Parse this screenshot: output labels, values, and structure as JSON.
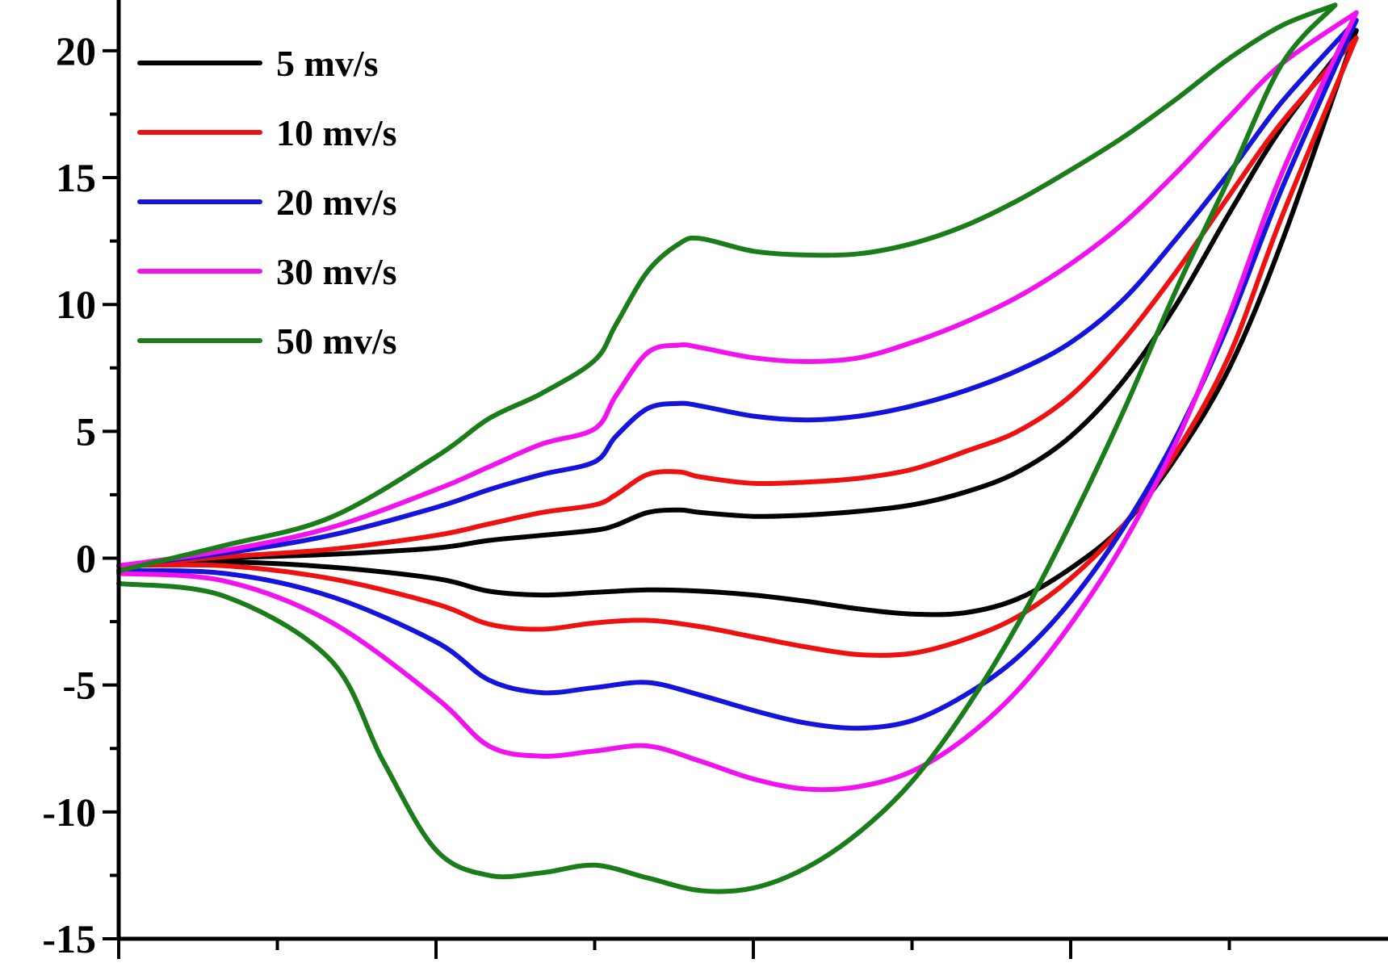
{
  "chart_data": {
    "type": "line",
    "title": "",
    "xlabel": "",
    "ylabel": "",
    "xlim": [
      -0.4,
      0.8
    ],
    "ylim": [
      -15,
      22
    ],
    "x_major_ticks": [
      -0.4,
      -0.1,
      0.2,
      0.5
    ],
    "x_minor_ticks": [
      -0.25,
      0.05,
      0.35,
      0.65
    ],
    "y_ticks": [
      {
        "value": -15,
        "label": "-15"
      },
      {
        "value": -10,
        "label": "-10"
      },
      {
        "value": -5,
        "label": "-5"
      },
      {
        "value": 0,
        "label": "0"
      },
      {
        "value": 5,
        "label": "5"
      },
      {
        "value": 10,
        "label": "10"
      },
      {
        "value": 15,
        "label": "15"
      },
      {
        "value": 20,
        "label": "20"
      }
    ],
    "y_minor_ticks": [
      -12.5,
      -7.5,
      -2.5,
      2.5,
      7.5,
      12.5,
      17.5
    ],
    "grid": false,
    "legend_position": "top-left",
    "series": [
      {
        "name": "5 mv/s",
        "color": "#000000",
        "anodic": {
          "x": [
            -0.4,
            -0.3,
            -0.2,
            -0.1,
            -0.05,
            0.0,
            0.05,
            0.07,
            0.1,
            0.13,
            0.15,
            0.2,
            0.25,
            0.3,
            0.35,
            0.4,
            0.45,
            0.5,
            0.55,
            0.6,
            0.65,
            0.7,
            0.77
          ],
          "y": [
            -0.3,
            0.0,
            0.15,
            0.4,
            0.7,
            0.9,
            1.1,
            1.3,
            1.8,
            1.9,
            1.8,
            1.65,
            1.7,
            1.85,
            2.1,
            2.6,
            3.4,
            4.8,
            7.0,
            10.0,
            13.6,
            17.0,
            20.8
          ]
        },
        "cathodic": {
          "x": [
            -0.4,
            -0.3,
            -0.2,
            -0.1,
            -0.05,
            0.0,
            0.05,
            0.1,
            0.15,
            0.2,
            0.25,
            0.3,
            0.35,
            0.4,
            0.45,
            0.5,
            0.55,
            0.6,
            0.65,
            0.7,
            0.77
          ],
          "y": [
            -0.3,
            -0.15,
            -0.35,
            -0.8,
            -1.3,
            -1.45,
            -1.35,
            -1.25,
            -1.3,
            -1.45,
            -1.7,
            -2.0,
            -2.2,
            -2.15,
            -1.6,
            -0.4,
            1.3,
            4.0,
            7.5,
            12.5,
            20.8
          ]
        }
      },
      {
        "name": "10 mv/s",
        "color": "#ee1111",
        "anodic": {
          "x": [
            -0.4,
            -0.3,
            -0.2,
            -0.1,
            -0.05,
            0.0,
            0.05,
            0.07,
            0.1,
            0.13,
            0.15,
            0.2,
            0.25,
            0.3,
            0.35,
            0.4,
            0.45,
            0.5,
            0.55,
            0.6,
            0.65,
            0.7,
            0.77
          ],
          "y": [
            -0.3,
            0.05,
            0.35,
            0.9,
            1.35,
            1.8,
            2.1,
            2.5,
            3.3,
            3.4,
            3.2,
            2.95,
            3.0,
            3.15,
            3.5,
            4.2,
            5.0,
            6.4,
            8.6,
            11.3,
            14.3,
            17.2,
            20.5
          ]
        },
        "cathodic": {
          "x": [
            -0.4,
            -0.3,
            -0.2,
            -0.1,
            -0.05,
            0.0,
            0.05,
            0.1,
            0.15,
            0.2,
            0.25,
            0.3,
            0.35,
            0.4,
            0.45,
            0.5,
            0.55,
            0.6,
            0.65,
            0.7,
            0.77
          ],
          "y": [
            -0.3,
            -0.3,
            -0.8,
            -1.8,
            -2.6,
            -2.8,
            -2.55,
            -2.45,
            -2.7,
            -3.1,
            -3.5,
            -3.8,
            -3.75,
            -3.2,
            -2.3,
            -0.8,
            1.3,
            4.2,
            8.0,
            13.5,
            20.5
          ]
        }
      },
      {
        "name": "20 mv/s",
        "color": "#1414dc",
        "anodic": {
          "x": [
            -0.4,
            -0.3,
            -0.2,
            -0.1,
            -0.05,
            0.0,
            0.05,
            0.07,
            0.1,
            0.13,
            0.15,
            0.2,
            0.25,
            0.3,
            0.35,
            0.4,
            0.45,
            0.5,
            0.55,
            0.6,
            0.65,
            0.7,
            0.77
          ],
          "y": [
            -0.3,
            0.2,
            0.9,
            2.0,
            2.7,
            3.3,
            3.8,
            4.8,
            5.9,
            6.1,
            6.0,
            5.6,
            5.45,
            5.6,
            6.0,
            6.6,
            7.4,
            8.5,
            10.2,
            12.6,
            15.2,
            18.0,
            21.2
          ]
        },
        "cathodic": {
          "x": [
            -0.4,
            -0.3,
            -0.2,
            -0.1,
            -0.05,
            0.0,
            0.05,
            0.1,
            0.15,
            0.2,
            0.25,
            0.3,
            0.35,
            0.4,
            0.45,
            0.5,
            0.55,
            0.6,
            0.65,
            0.7,
            0.77
          ],
          "y": [
            -0.5,
            -0.6,
            -1.5,
            -3.3,
            -4.8,
            -5.3,
            -5.1,
            -4.9,
            -5.4,
            -6.0,
            -6.5,
            -6.7,
            -6.4,
            -5.4,
            -3.9,
            -1.7,
            1.2,
            4.8,
            9.3,
            14.6,
            21.2
          ]
        }
      },
      {
        "name": "30 mv/s",
        "color": "#f013f0",
        "anodic": {
          "x": [
            -0.4,
            -0.3,
            -0.2,
            -0.1,
            -0.05,
            0.0,
            0.05,
            0.07,
            0.1,
            0.13,
            0.15,
            0.2,
            0.25,
            0.3,
            0.35,
            0.4,
            0.45,
            0.5,
            0.55,
            0.6,
            0.65,
            0.7,
            0.77
          ],
          "y": [
            -0.3,
            0.3,
            1.2,
            2.7,
            3.6,
            4.5,
            5.1,
            6.4,
            8.1,
            8.4,
            8.3,
            7.9,
            7.75,
            7.9,
            8.5,
            9.3,
            10.3,
            11.6,
            13.2,
            15.2,
            17.4,
            19.5,
            21.5
          ]
        },
        "cathodic": {
          "x": [
            -0.4,
            -0.3,
            -0.2,
            -0.1,
            -0.05,
            0.0,
            0.05,
            0.1,
            0.15,
            0.2,
            0.25,
            0.3,
            0.35,
            0.4,
            0.45,
            0.5,
            0.55,
            0.6,
            0.65,
            0.7,
            0.77
          ],
          "y": [
            -0.6,
            -0.9,
            -2.5,
            -5.5,
            -7.4,
            -7.8,
            -7.6,
            -7.4,
            -8.0,
            -8.7,
            -9.1,
            -9.0,
            -8.4,
            -7.1,
            -5.2,
            -2.6,
            0.6,
            4.6,
            9.6,
            15.2,
            21.5
          ]
        }
      },
      {
        "name": "50 mv/s",
        "color": "#1a7d1a",
        "anodic": {
          "x": [
            -0.4,
            -0.3,
            -0.2,
            -0.1,
            -0.05,
            0.0,
            0.05,
            0.07,
            0.1,
            0.13,
            0.15,
            0.2,
            0.25,
            0.3,
            0.35,
            0.4,
            0.45,
            0.5,
            0.55,
            0.6,
            0.65,
            0.7,
            0.75
          ],
          "y": [
            -0.5,
            0.5,
            1.6,
            4.0,
            5.5,
            6.5,
            7.8,
            9.2,
            11.3,
            12.4,
            12.6,
            12.1,
            11.95,
            12.0,
            12.4,
            13.1,
            14.1,
            15.3,
            16.6,
            18.1,
            19.7,
            21.0,
            21.8
          ]
        },
        "cathodic": {
          "x": [
            -0.4,
            -0.3,
            -0.2,
            -0.15,
            -0.1,
            -0.05,
            0.0,
            0.05,
            0.1,
            0.15,
            0.2,
            0.25,
            0.3,
            0.35,
            0.4,
            0.45,
            0.5,
            0.55,
            0.6,
            0.65,
            0.7,
            0.75
          ],
          "y": [
            -1.0,
            -1.5,
            -4.0,
            -8.0,
            -11.5,
            -12.5,
            -12.4,
            -12.1,
            -12.6,
            -13.1,
            -13.0,
            -12.2,
            -10.8,
            -8.8,
            -6.0,
            -2.6,
            1.4,
            5.8,
            10.6,
            15.0,
            19.5,
            21.8
          ]
        }
      }
    ]
  }
}
